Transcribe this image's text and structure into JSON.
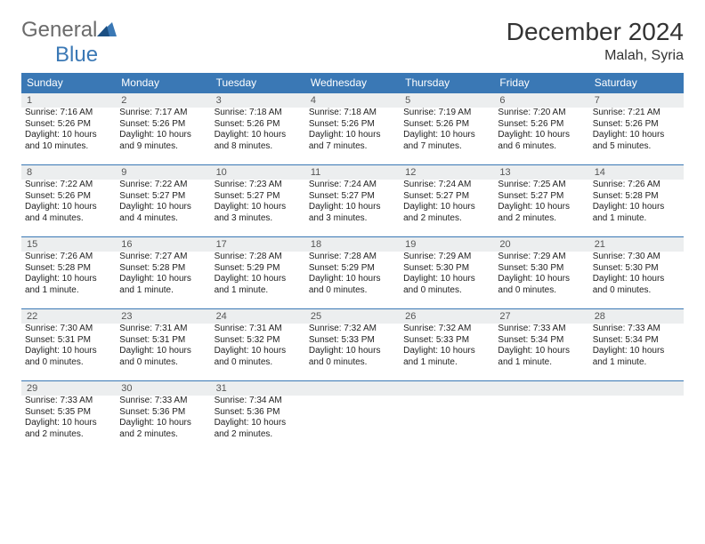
{
  "brand": {
    "part1": "General",
    "part2": "Blue"
  },
  "title": "December 2024",
  "location": "Malah, Syria",
  "colors": {
    "header_bg": "#3a78b5",
    "header_text": "#ffffff",
    "daynum_bg": "#eceeef",
    "border_top": "#3a78b5",
    "body_text": "#222222",
    "logo_gray": "#6b6b6b",
    "logo_blue": "#3a78b5"
  },
  "weekdays": [
    "Sunday",
    "Monday",
    "Tuesday",
    "Wednesday",
    "Thursday",
    "Friday",
    "Saturday"
  ],
  "weeks": [
    [
      {
        "n": "1",
        "sr": "Sunrise: 7:16 AM",
        "ss": "Sunset: 5:26 PM",
        "d1": "Daylight: 10 hours",
        "d2": "and 10 minutes."
      },
      {
        "n": "2",
        "sr": "Sunrise: 7:17 AM",
        "ss": "Sunset: 5:26 PM",
        "d1": "Daylight: 10 hours",
        "d2": "and 9 minutes."
      },
      {
        "n": "3",
        "sr": "Sunrise: 7:18 AM",
        "ss": "Sunset: 5:26 PM",
        "d1": "Daylight: 10 hours",
        "d2": "and 8 minutes."
      },
      {
        "n": "4",
        "sr": "Sunrise: 7:18 AM",
        "ss": "Sunset: 5:26 PM",
        "d1": "Daylight: 10 hours",
        "d2": "and 7 minutes."
      },
      {
        "n": "5",
        "sr": "Sunrise: 7:19 AM",
        "ss": "Sunset: 5:26 PM",
        "d1": "Daylight: 10 hours",
        "d2": "and 7 minutes."
      },
      {
        "n": "6",
        "sr": "Sunrise: 7:20 AM",
        "ss": "Sunset: 5:26 PM",
        "d1": "Daylight: 10 hours",
        "d2": "and 6 minutes."
      },
      {
        "n": "7",
        "sr": "Sunrise: 7:21 AM",
        "ss": "Sunset: 5:26 PM",
        "d1": "Daylight: 10 hours",
        "d2": "and 5 minutes."
      }
    ],
    [
      {
        "n": "8",
        "sr": "Sunrise: 7:22 AM",
        "ss": "Sunset: 5:26 PM",
        "d1": "Daylight: 10 hours",
        "d2": "and 4 minutes."
      },
      {
        "n": "9",
        "sr": "Sunrise: 7:22 AM",
        "ss": "Sunset: 5:27 PM",
        "d1": "Daylight: 10 hours",
        "d2": "and 4 minutes."
      },
      {
        "n": "10",
        "sr": "Sunrise: 7:23 AM",
        "ss": "Sunset: 5:27 PM",
        "d1": "Daylight: 10 hours",
        "d2": "and 3 minutes."
      },
      {
        "n": "11",
        "sr": "Sunrise: 7:24 AM",
        "ss": "Sunset: 5:27 PM",
        "d1": "Daylight: 10 hours",
        "d2": "and 3 minutes."
      },
      {
        "n": "12",
        "sr": "Sunrise: 7:24 AM",
        "ss": "Sunset: 5:27 PM",
        "d1": "Daylight: 10 hours",
        "d2": "and 2 minutes."
      },
      {
        "n": "13",
        "sr": "Sunrise: 7:25 AM",
        "ss": "Sunset: 5:27 PM",
        "d1": "Daylight: 10 hours",
        "d2": "and 2 minutes."
      },
      {
        "n": "14",
        "sr": "Sunrise: 7:26 AM",
        "ss": "Sunset: 5:28 PM",
        "d1": "Daylight: 10 hours",
        "d2": "and 1 minute."
      }
    ],
    [
      {
        "n": "15",
        "sr": "Sunrise: 7:26 AM",
        "ss": "Sunset: 5:28 PM",
        "d1": "Daylight: 10 hours",
        "d2": "and 1 minute."
      },
      {
        "n": "16",
        "sr": "Sunrise: 7:27 AM",
        "ss": "Sunset: 5:28 PM",
        "d1": "Daylight: 10 hours",
        "d2": "and 1 minute."
      },
      {
        "n": "17",
        "sr": "Sunrise: 7:28 AM",
        "ss": "Sunset: 5:29 PM",
        "d1": "Daylight: 10 hours",
        "d2": "and 1 minute."
      },
      {
        "n": "18",
        "sr": "Sunrise: 7:28 AM",
        "ss": "Sunset: 5:29 PM",
        "d1": "Daylight: 10 hours",
        "d2": "and 0 minutes."
      },
      {
        "n": "19",
        "sr": "Sunrise: 7:29 AM",
        "ss": "Sunset: 5:30 PM",
        "d1": "Daylight: 10 hours",
        "d2": "and 0 minutes."
      },
      {
        "n": "20",
        "sr": "Sunrise: 7:29 AM",
        "ss": "Sunset: 5:30 PM",
        "d1": "Daylight: 10 hours",
        "d2": "and 0 minutes."
      },
      {
        "n": "21",
        "sr": "Sunrise: 7:30 AM",
        "ss": "Sunset: 5:30 PM",
        "d1": "Daylight: 10 hours",
        "d2": "and 0 minutes."
      }
    ],
    [
      {
        "n": "22",
        "sr": "Sunrise: 7:30 AM",
        "ss": "Sunset: 5:31 PM",
        "d1": "Daylight: 10 hours",
        "d2": "and 0 minutes."
      },
      {
        "n": "23",
        "sr": "Sunrise: 7:31 AM",
        "ss": "Sunset: 5:31 PM",
        "d1": "Daylight: 10 hours",
        "d2": "and 0 minutes."
      },
      {
        "n": "24",
        "sr": "Sunrise: 7:31 AM",
        "ss": "Sunset: 5:32 PM",
        "d1": "Daylight: 10 hours",
        "d2": "and 0 minutes."
      },
      {
        "n": "25",
        "sr": "Sunrise: 7:32 AM",
        "ss": "Sunset: 5:33 PM",
        "d1": "Daylight: 10 hours",
        "d2": "and 0 minutes."
      },
      {
        "n": "26",
        "sr": "Sunrise: 7:32 AM",
        "ss": "Sunset: 5:33 PM",
        "d1": "Daylight: 10 hours",
        "d2": "and 1 minute."
      },
      {
        "n": "27",
        "sr": "Sunrise: 7:33 AM",
        "ss": "Sunset: 5:34 PM",
        "d1": "Daylight: 10 hours",
        "d2": "and 1 minute."
      },
      {
        "n": "28",
        "sr": "Sunrise: 7:33 AM",
        "ss": "Sunset: 5:34 PM",
        "d1": "Daylight: 10 hours",
        "d2": "and 1 minute."
      }
    ],
    [
      {
        "n": "29",
        "sr": "Sunrise: 7:33 AM",
        "ss": "Sunset: 5:35 PM",
        "d1": "Daylight: 10 hours",
        "d2": "and 2 minutes."
      },
      {
        "n": "30",
        "sr": "Sunrise: 7:33 AM",
        "ss": "Sunset: 5:36 PM",
        "d1": "Daylight: 10 hours",
        "d2": "and 2 minutes."
      },
      {
        "n": "31",
        "sr": "Sunrise: 7:34 AM",
        "ss": "Sunset: 5:36 PM",
        "d1": "Daylight: 10 hours",
        "d2": "and 2 minutes."
      },
      {
        "blank": true
      },
      {
        "blank": true
      },
      {
        "blank": true
      },
      {
        "blank": true
      }
    ]
  ]
}
